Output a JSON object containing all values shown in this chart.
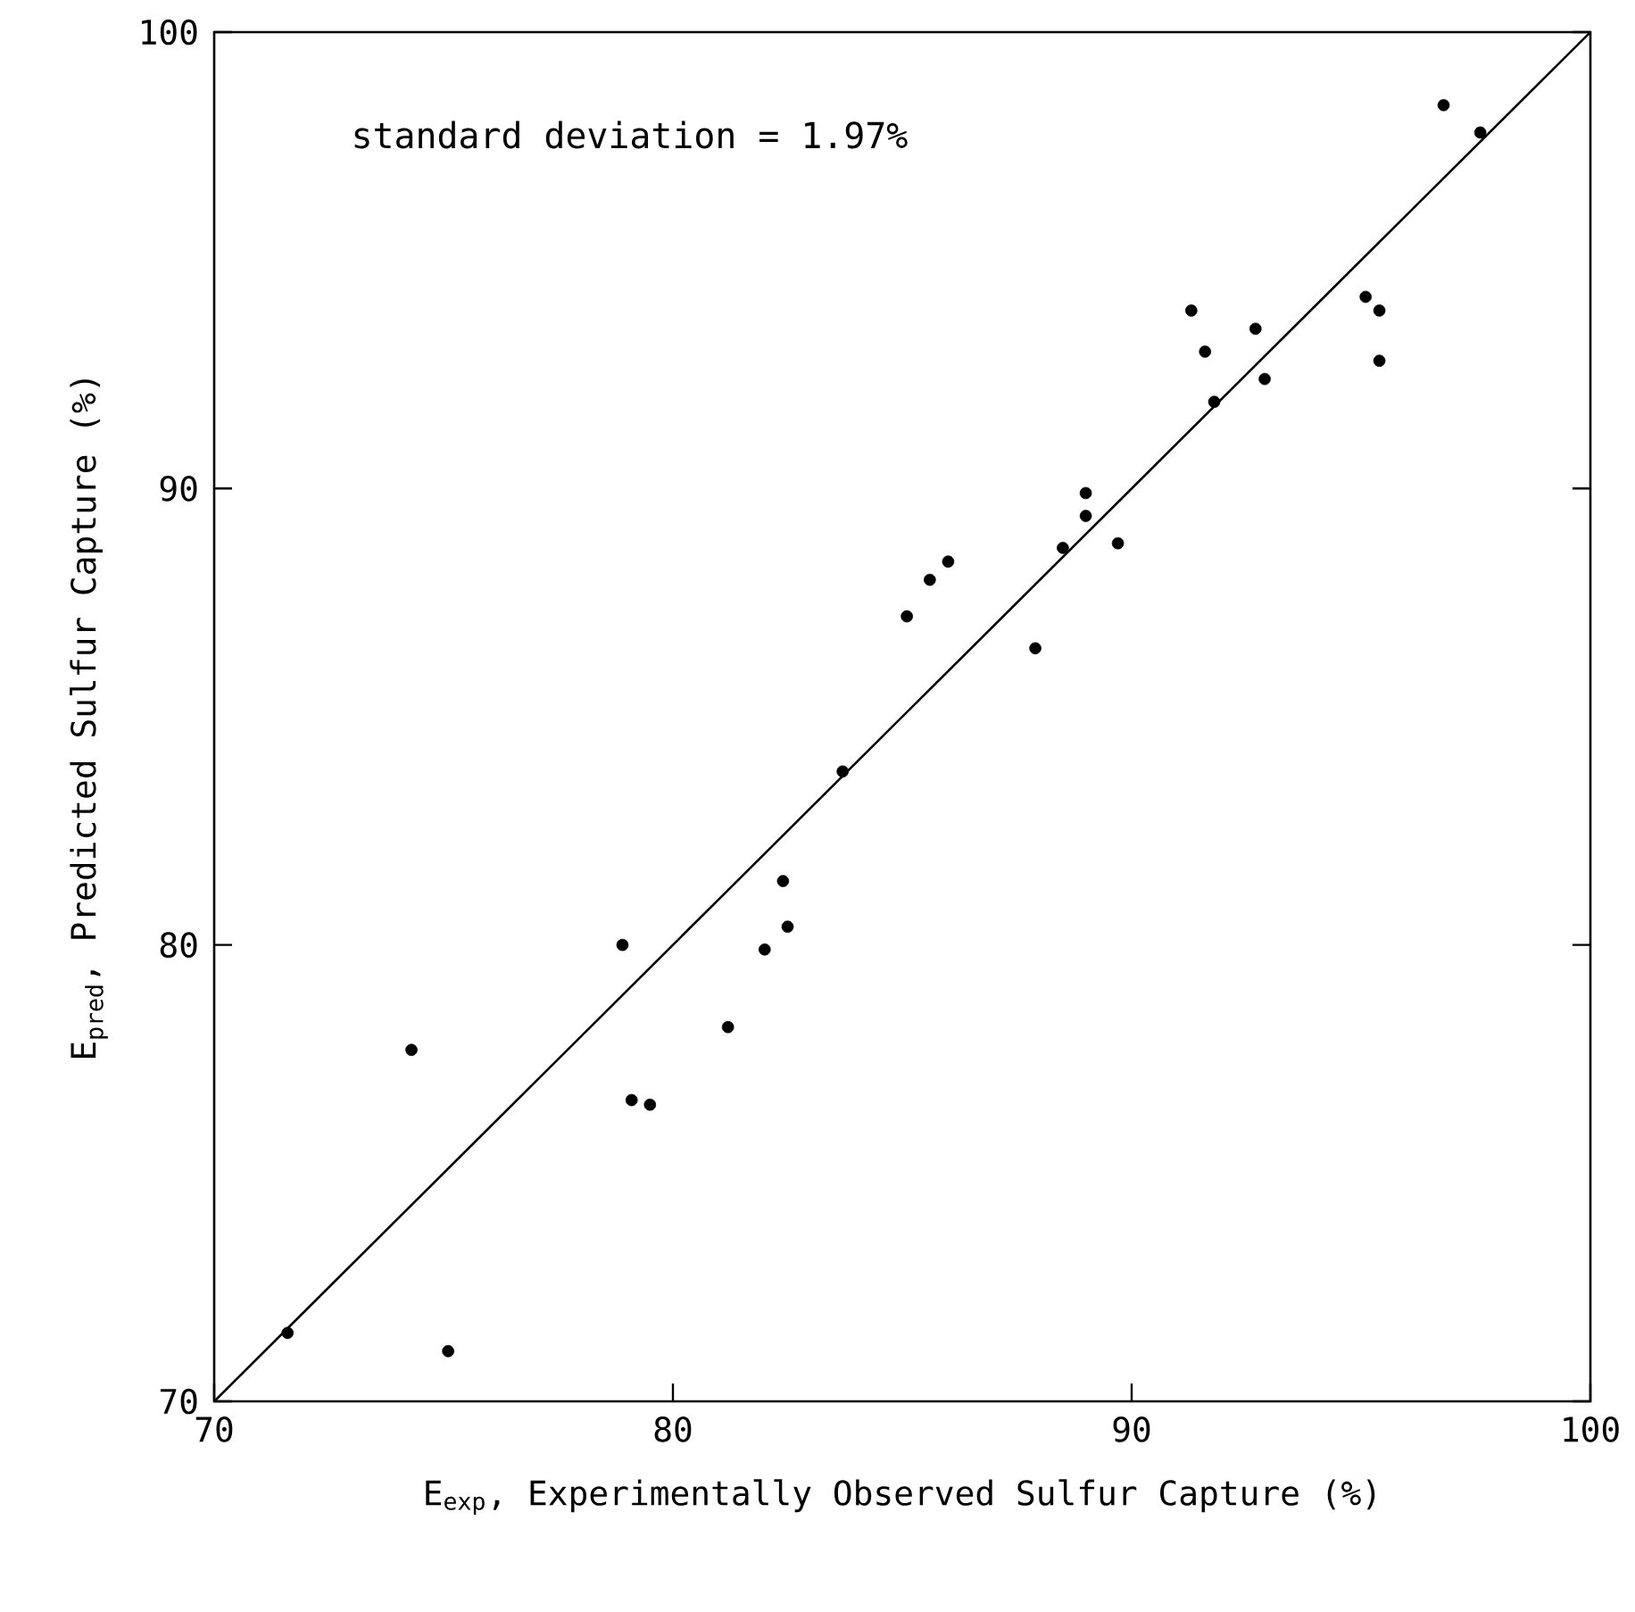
{
  "chart_data": {
    "type": "scatter",
    "xlabel": "E$_{exp}$, Experimentally Observed Sulfur Capture  (%)",
    "ylabel": "E$_{pred}$, Predicted Sulfur Capture  (%)",
    "annotations": [
      "standard deviation = 1.97%"
    ],
    "xlim": [
      70,
      100
    ],
    "ylim": [
      70,
      100
    ],
    "xticks": [
      70,
      80,
      90,
      100
    ],
    "yticks": [
      70,
      80,
      90,
      100
    ],
    "series": [
      {
        "marker": "circle",
        "color": "#000000",
        "x": [
          71.6,
          74.3,
          75.1,
          78.9,
          79.1,
          79.5,
          81.2,
          82.0,
          82.4,
          82.5,
          83.7,
          85.1,
          85.6,
          86.0,
          87.9,
          88.5,
          89.0,
          89.0,
          89.7,
          91.3,
          91.6,
          91.8,
          92.7,
          92.9,
          95.1,
          95.4,
          95.4,
          96.8,
          97.6
        ],
        "values": [
          71.5,
          77.7,
          71.1,
          80.0,
          76.6,
          76.5,
          78.2,
          79.9,
          81.4,
          80.4,
          83.8,
          87.2,
          88.0,
          88.4,
          86.5,
          88.7,
          89.9,
          89.4,
          88.8,
          93.9,
          93.0,
          91.9,
          93.5,
          92.4,
          94.2,
          93.9,
          92.8,
          98.4,
          97.8
        ]
      },
      {
        "type": "line",
        "color": "#000000",
        "line_style": "solid",
        "x": [
          70,
          100
        ],
        "values": [
          70,
          100
        ]
      }
    ]
  }
}
